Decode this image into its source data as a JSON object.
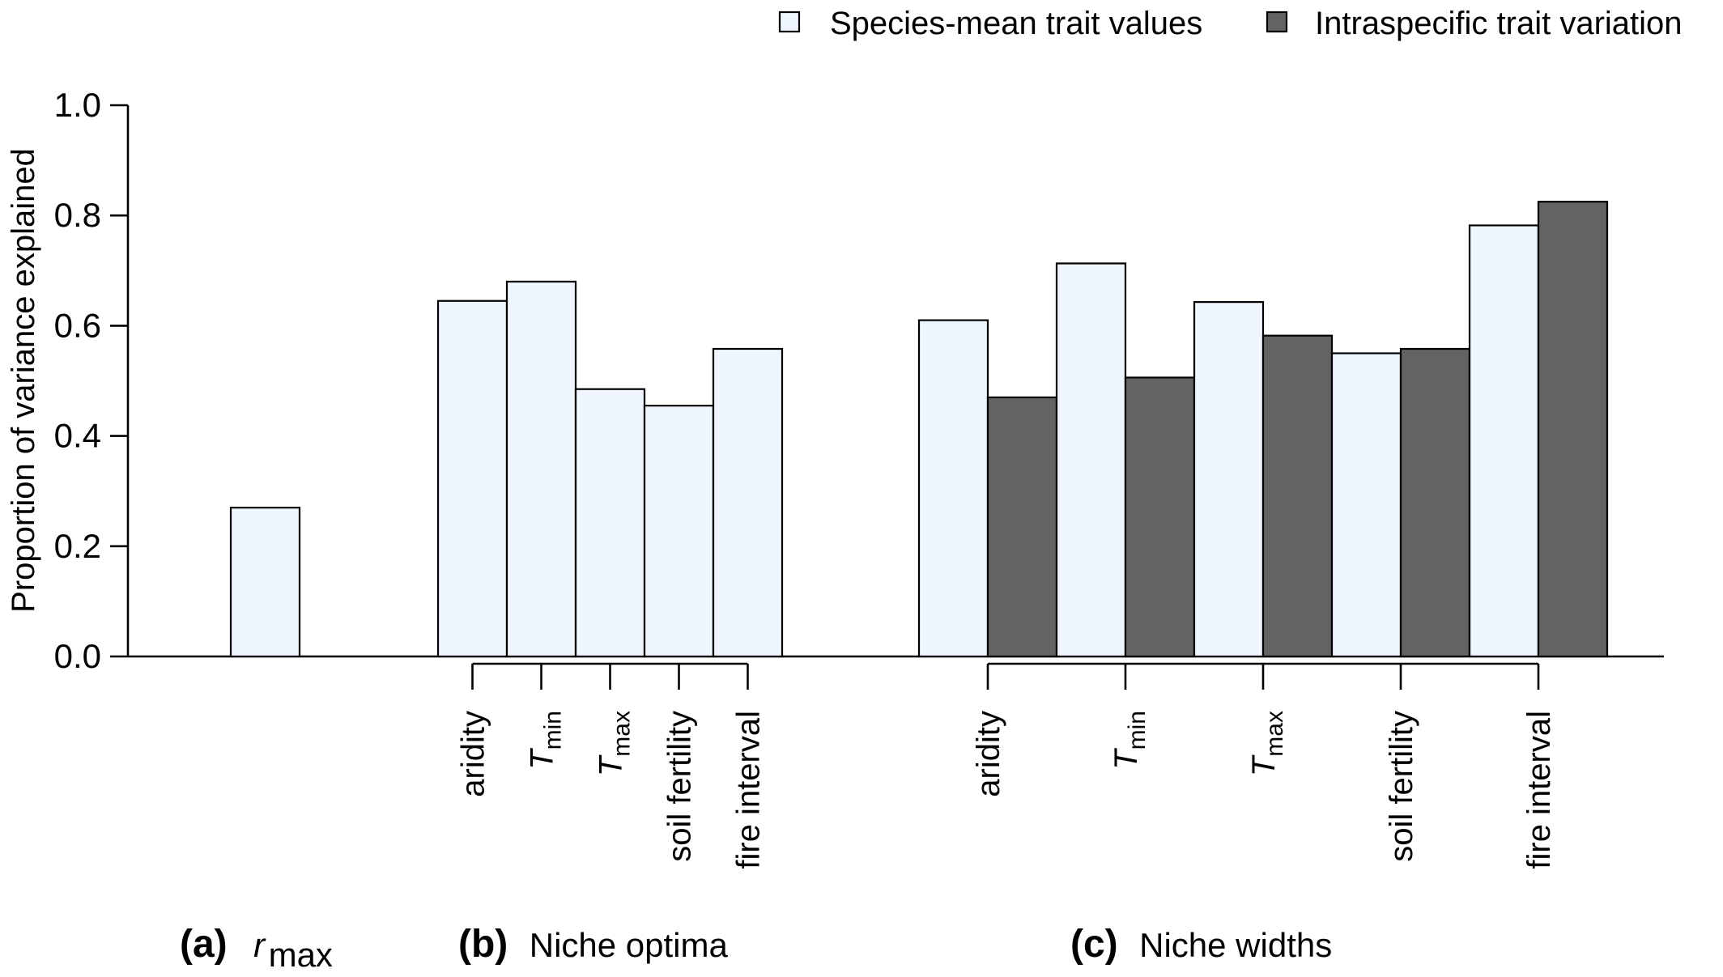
{
  "chart_data": {
    "type": "bar",
    "ylabel": "Proportion of variance explained",
    "ylim": [
      0,
      1
    ],
    "yticks": [
      "0.0",
      "0.2",
      "0.4",
      "0.6",
      "0.8",
      "1.0"
    ],
    "legend": {
      "placement": "top-right",
      "items": [
        {
          "label": "Species-mean trait values",
          "color": "#eef5fd"
        },
        {
          "label": "Intraspecific trait variation",
          "color": "#636363"
        }
      ]
    },
    "series": [
      {
        "name": "Species-mean trait values",
        "color": "#eef5fd"
      },
      {
        "name": "Intraspecific trait variation",
        "color": "#636363"
      }
    ],
    "panels": [
      {
        "letter": "(a)",
        "title_main": "r",
        "title_sub": "max",
        "categories": [
          ""
        ],
        "values": {
          "Species-mean trait values": [
            0.27
          ]
        }
      },
      {
        "letter": "(b)",
        "title": "Niche optima",
        "categories": [
          {
            "main": "aridity",
            "sub": ""
          },
          {
            "main": "T",
            "sub": "min"
          },
          {
            "main": "T",
            "sub": "max"
          },
          {
            "main": "soil fertility",
            "sub": ""
          },
          {
            "main": "fire interval",
            "sub": ""
          }
        ],
        "values": {
          "Species-mean trait values": [
            0.645,
            0.68,
            0.485,
            0.455,
            0.558
          ]
        }
      },
      {
        "letter": "(c)",
        "title": "Niche widths",
        "categories": [
          {
            "main": "aridity",
            "sub": ""
          },
          {
            "main": "T",
            "sub": "min"
          },
          {
            "main": "T",
            "sub": "max"
          },
          {
            "main": "soil fertility",
            "sub": ""
          },
          {
            "main": "fire interval",
            "sub": ""
          }
        ],
        "values": {
          "Species-mean trait values": [
            0.61,
            0.713,
            0.643,
            0.55,
            0.782
          ],
          "Intraspecific trait variation": [
            0.47,
            0.506,
            0.582,
            0.558,
            0.825
          ]
        }
      }
    ]
  }
}
